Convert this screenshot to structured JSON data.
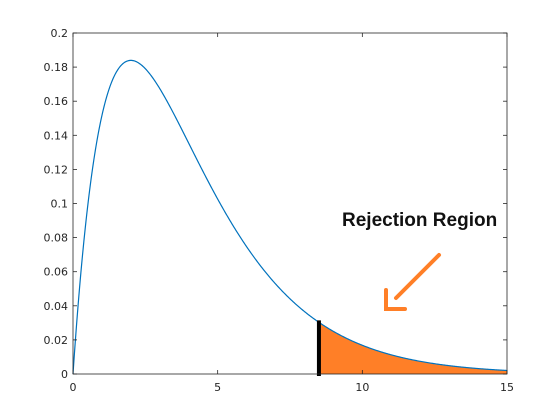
{
  "chart_data": {
    "type": "line",
    "title": "",
    "xlabel": "",
    "ylabel": "",
    "xlim": [
      0,
      15
    ],
    "ylim": [
      0,
      0.2
    ],
    "grid": false,
    "x_ticks": [
      0,
      5,
      10,
      15
    ],
    "x_tick_labels": [
      "0",
      "5",
      "10",
      "15"
    ],
    "y_ticks": [
      0,
      0.02,
      0.04,
      0.06,
      0.08,
      0.1,
      0.12,
      0.14,
      0.16,
      0.18,
      0.2
    ],
    "y_tick_labels": [
      "0",
      "0.02",
      "0.04",
      "0.06",
      "0.08",
      "0.1",
      "0.12",
      "0.14",
      "0.16",
      "0.18",
      "0.2"
    ],
    "series": [
      {
        "x": [
          0,
          0.5,
          1,
          1.5,
          2,
          2.5,
          3,
          3.5,
          4,
          4.5,
          5,
          5.5,
          6,
          6.5,
          7,
          7.5,
          8,
          8.5,
          9,
          9.5,
          10,
          10.5,
          11,
          11.5,
          12,
          12.5,
          13,
          13.5,
          14,
          14.5,
          15
        ],
        "y": [
          0,
          0.1101,
          0.1542,
          0.1771,
          0.1839,
          0.1794,
          0.1673,
          0.1505,
          0.1353,
          0.1181,
          0.1026,
          0.0884,
          0.0757,
          0.0644,
          0.0546,
          0.0461,
          0.0388,
          0.0324,
          0.0272,
          0.0226,
          0.0187,
          0.0154,
          0.0127,
          0.0104,
          0.0085,
          0.007,
          0.0057,
          0.0046,
          0.0037,
          0.003,
          0.0024
        ],
        "color": "#0072BD"
      }
    ],
    "critical_value": 8.5,
    "shaded_region": {
      "x_start": 8.5,
      "x_end": 15,
      "color": "#FF7F27"
    },
    "critical_line_color": "#000000",
    "annotation": {
      "text": "Rejection Region",
      "arrow_color": "#FF7F27"
    }
  }
}
